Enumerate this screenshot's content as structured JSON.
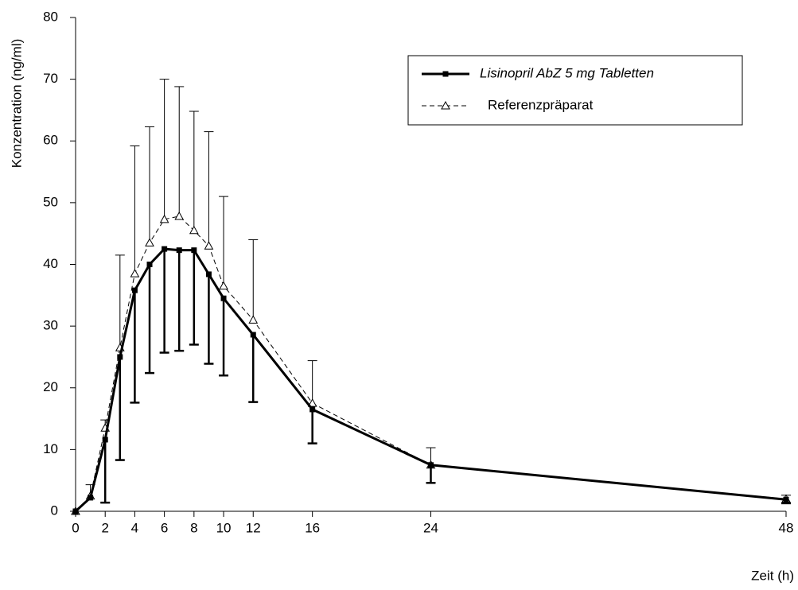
{
  "chart_data": {
    "type": "line",
    "y_label": "Konzentration (ng/ml)",
    "x_label": "Zeit (h)",
    "x": [
      0,
      1,
      2,
      3,
      4,
      5,
      6,
      7,
      8,
      9,
      10,
      12,
      16,
      24,
      48
    ],
    "xlim": [
      0,
      48
    ],
    "xticks": [
      0,
      2,
      4,
      6,
      8,
      10,
      12,
      16,
      24,
      48
    ],
    "ylim": [
      0,
      80
    ],
    "yticks": [
      0,
      10,
      20,
      30,
      40,
      50,
      60,
      70,
      80
    ],
    "legend": "upper-right",
    "series": [
      {
        "name": "Lisinopril AbZ 5 mg Tabletten",
        "color": "#000000",
        "style": "solid",
        "marker": "square",
        "error_direction": "down",
        "values": [
          0,
          2.2,
          11.6,
          25,
          35.8,
          40,
          42.5,
          42.3,
          42.3,
          38.4,
          34.5,
          28.6,
          16.5,
          7.5,
          1.9
        ],
        "errors": [
          null,
          null,
          10.2,
          16.7,
          18.2,
          17.6,
          16.8,
          16.3,
          15.3,
          14.5,
          12.5,
          10.9,
          5.5,
          2.9,
          0.6
        ]
      },
      {
        "name": "Referenzpräparat",
        "color": "#000000",
        "style": "dashed",
        "marker": "triangle",
        "error_direction": "up",
        "values": [
          0,
          2.5,
          13.5,
          26.5,
          38.5,
          43.5,
          47.3,
          47.8,
          45.5,
          43,
          36.5,
          31,
          17.5,
          7.5,
          2
        ],
        "errors": [
          null,
          1.8,
          1.3,
          15,
          20.7,
          18.8,
          22.7,
          21,
          19.3,
          18.5,
          14.5,
          13,
          6.9,
          2.8,
          0.6
        ]
      }
    ]
  }
}
